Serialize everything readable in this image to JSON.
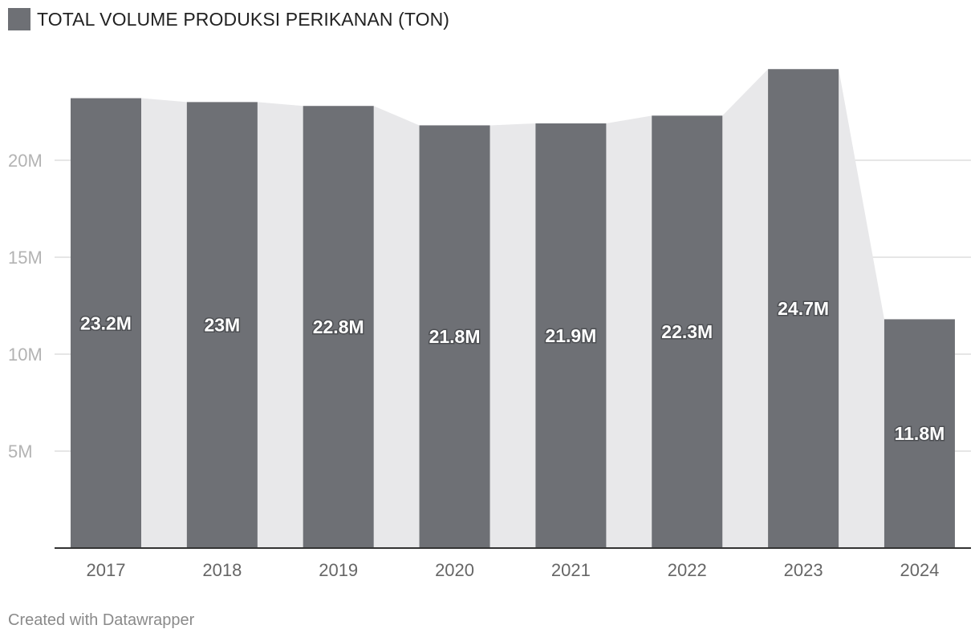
{
  "legend": {
    "label": "TOTAL VOLUME PRODUKSI PERIKANAN (TON)",
    "swatch_icon": "square-swatch"
  },
  "footer": {
    "credit": "Created with Datawrapper"
  },
  "colors": {
    "bar": "#6e7075",
    "area": "#e8e8ea",
    "grid": "#dddddd",
    "axis": "#333333"
  },
  "chart_data": {
    "type": "bar",
    "categories": [
      "2017",
      "2018",
      "2019",
      "2020",
      "2021",
      "2022",
      "2023",
      "2024"
    ],
    "values": [
      23.2,
      23.0,
      22.8,
      21.8,
      21.9,
      22.3,
      24.7,
      11.8
    ],
    "value_labels": [
      "23.2M",
      "23M",
      "22.8M",
      "21.8M",
      "21.9M",
      "22.3M",
      "24.7M",
      "11.8M"
    ],
    "unit": "M",
    "y_ticks": [
      5,
      10,
      15,
      20
    ],
    "y_tick_labels": [
      "5M",
      "10M",
      "15M",
      "20M"
    ],
    "ylim": [
      0,
      25
    ],
    "grid": true,
    "area_connector": true,
    "title": "",
    "xlabel": "",
    "ylabel": ""
  }
}
